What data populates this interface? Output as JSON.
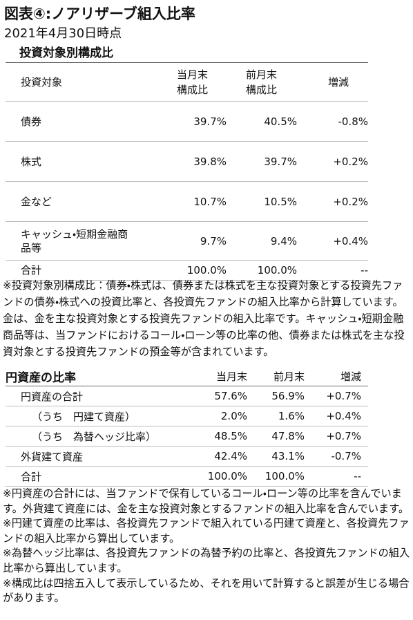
{
  "header": {
    "title": "図表④:ノアリザーブ組入比率",
    "subtitle": "2021年4月30日時点"
  },
  "table1": {
    "title": "投資対象別構成比",
    "headers": [
      "投資対象",
      "当月末\n構成比",
      "前月末\n構成比",
      "増減"
    ],
    "rows": [
      [
        "債券",
        "39.7%",
        "40.5%",
        "-0.8%"
      ],
      [
        "株式",
        "39.8%",
        "39.7%",
        "+0.2%"
      ],
      [
        "金など",
        "10.7%",
        "10.5%",
        "+0.2%"
      ],
      [
        "キャッシュ・短期金融商品等",
        "9.7%",
        "9.4%",
        "+0.4%"
      ],
      [
        "合計",
        "100.0%",
        "100.0%",
        "--"
      ]
    ],
    "note": "※投資対象別構成比：債券・株式は、債券または株式を主な投資対象とする投資先ファンドの債券・株式への投資比率と、各投資先ファンドの組入比率から計算しています。金は、金を主な投資対象とする投資先ファンドの組入比率です。キャッシュ・短期金融商品等は、当ファンドにおけるコール・ローン等の比率の他、債券または株式を主な投資対象とする投資先ファンドの預金等が含まれています。"
  },
  "table2": {
    "title": "円資産の比率",
    "headers": [
      "当月末",
      "前月末",
      "増減"
    ],
    "rows": [
      [
        "円資産の合計",
        "57.6%",
        "56.9%",
        "+0.7%"
      ],
      [
        "（うち　円建て資産）",
        "2.0%",
        "1.6%",
        "+0.4%"
      ],
      [
        "（うち　為替ヘッジ比率）",
        "48.5%",
        "47.8%",
        "+0.7%"
      ],
      [
        "外貨建て資産",
        "42.4%",
        "43.1%",
        "-0.7%"
      ],
      [
        "合計",
        "100.0%",
        "100.0%",
        "--"
      ]
    ],
    "notes": [
      "※円資産の合計には、当ファンドで保有しているコール・ローン等の比率を含んでいます。外貨建て資産には、金を主な投資対象とするファンドの組入比率を含んでいます。",
      "※円建て資産の比率は、各投資先ファンドで組入れている円建て資産と、各投資先ファンドの組入比率から算出しています。",
      "※為替ヘッジ比率は、各投資先ファンドの為替予約の比率と、各投資先ファンドの組入比率から算出しています。",
      "※構成比は四捨五入して表示しているため、それを用いて計算すると誤差が生じる場合があります。"
    ]
  }
}
